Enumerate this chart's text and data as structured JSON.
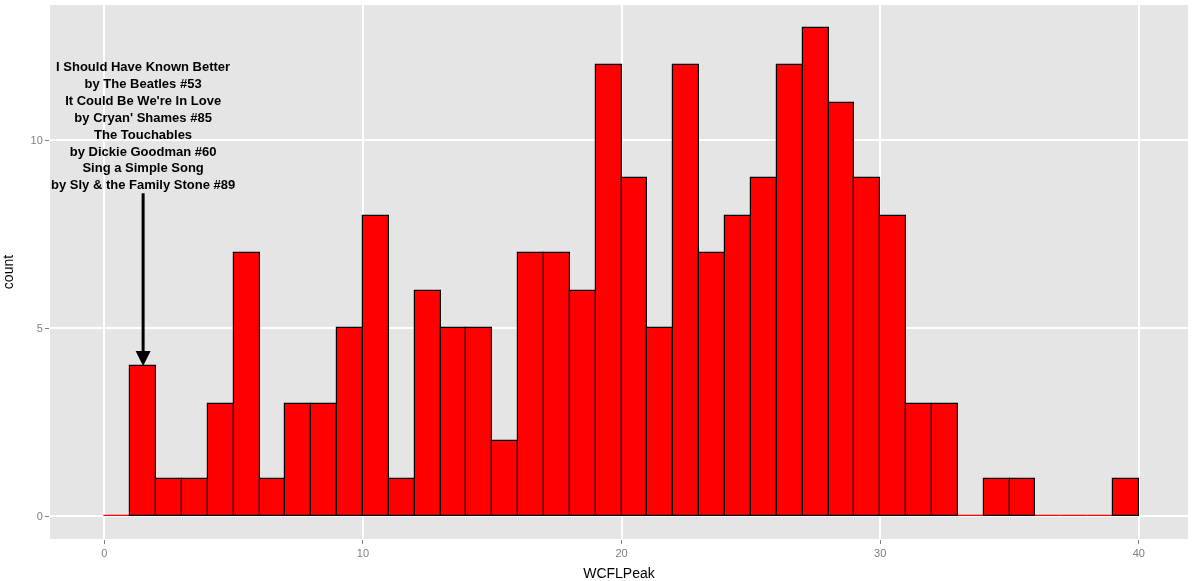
{
  "chart_data": {
    "type": "histogram",
    "xlabel": "WCFLPeak",
    "ylabel": "count",
    "bins": [
      0,
      1,
      2,
      3,
      4,
      5,
      6,
      7,
      8,
      9,
      10,
      11,
      12,
      13,
      14,
      15,
      16,
      17,
      18,
      19,
      20,
      21,
      22,
      23,
      24,
      25,
      26,
      27,
      28,
      29,
      30,
      31,
      32,
      33,
      34,
      35,
      36,
      37,
      38,
      39,
      40
    ],
    "values": [
      0,
      4,
      1,
      1,
      3,
      7,
      1,
      3,
      3,
      5,
      8,
      1,
      6,
      5,
      5,
      2,
      7,
      7,
      6,
      12,
      9,
      5,
      12,
      7,
      8,
      9,
      12,
      13,
      11,
      9,
      8,
      3,
      3,
      0,
      1,
      1,
      0,
      0,
      0,
      1
    ],
    "color": "#ff0000",
    "xlim": [
      -2.1,
      41.9
    ],
    "xticks": [
      0,
      10,
      20,
      30,
      40
    ],
    "ylim": [
      -0.6,
      13.6
    ],
    "yticks": [
      0,
      5,
      10
    ],
    "grid": true,
    "annotations": [
      {
        "text": "I Should Have Known Better\nby The Beatles #53\nIt Could Be We're In Love\nby Cryan' Shames #85\nThe Touchables\nby Dickie Goodman #60\nSing a Simple Song\nby Sly & the Family Stone #89",
        "x": 1.5,
        "y": 4
      }
    ]
  }
}
